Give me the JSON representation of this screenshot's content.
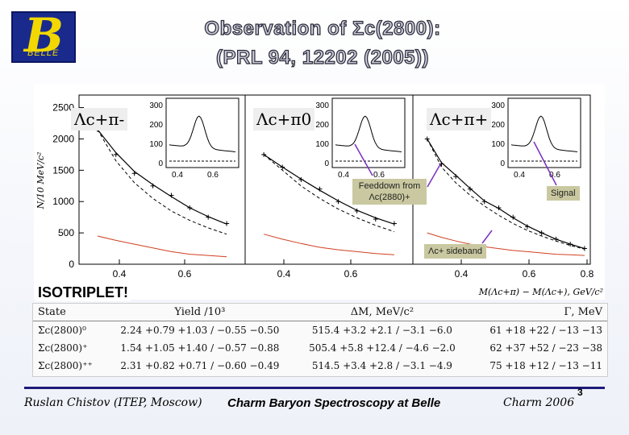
{
  "title": {
    "line1": "Observation of Σc(2800):",
    "line2": "(PRL 94, 12202 (2005))"
  },
  "logo": {
    "text": "BELLE"
  },
  "panels": [
    {
      "label": "Λc+π-"
    },
    {
      "label": "Λc+π0"
    },
    {
      "label": "Λc+π+"
    }
  ],
  "annotations": {
    "feeddown": "Feeddown from Λc(2880)+",
    "signal": "Signal",
    "sideband": "Λc+ sideband"
  },
  "isotriplet": "ISOTRIPLET!",
  "table": {
    "headers": [
      "State",
      "Yield /10³",
      "ΔM, MeV/c²",
      "Γ, MeV"
    ],
    "rows": [
      [
        "Σc(2800)⁰",
        "2.24 +0.79 +1.03 / −0.55 −0.50",
        "515.4 +3.2 +2.1 / −3.1 −6.0",
        "61 +18 +22 / −13 −13"
      ],
      [
        "Σc(2800)⁺",
        "1.54 +1.05 +1.40 / −0.57 −0.88",
        "505.4 +5.8 +12.4 / −4.6 −2.0",
        "62 +37 +52 / −23 −38"
      ],
      [
        "Σc(2800)⁺⁺",
        "2.31 +0.82 +0.71 / −0.60 −0.49",
        "514.5 +3.4 +2.8 / −3.1 −4.9",
        "75 +18 +12 / −13 −11"
      ]
    ]
  },
  "footer": {
    "author": "Ruslan Chistov (ITEP, Moscow)",
    "talk": "Charm Baryon Spectroscopy at Belle",
    "conf": "Charm 2006",
    "page": "3"
  },
  "chart_data": {
    "type": "line",
    "xlabel": "M(Λc+π) − M(Λc+), GeV/c²",
    "ylabel": "N/10 MeV/c²",
    "xlim": [
      0.2,
      0.8
    ],
    "ylim": [
      0,
      2700
    ],
    "x_ticks": [
      "0.4",
      "0.6",
      "0.4",
      "0.6",
      "0.4",
      "0.6",
      "0.8"
    ],
    "y_ticks": [
      "0",
      "500",
      "1000",
      "1500",
      "2000",
      "2500"
    ],
    "inset_y_ticks": [
      "0",
      "100",
      "200",
      "300"
    ],
    "inset_x_ticks": [
      "0.4",
      "0.6"
    ],
    "panels": [
      {
        "name": "Λc+π-",
        "x": [
          0.25,
          0.3,
          0.35,
          0.4,
          0.45,
          0.5,
          0.55,
          0.6
        ],
        "data": [
          2150,
          1750,
          1450,
          1250,
          1100,
          900,
          750,
          650
        ],
        "fit": [
          2150,
          1780,
          1480,
          1270,
          1080,
          900,
          760,
          640
        ],
        "background": [
          2150,
          1650,
          1300,
          1050,
          850,
          700,
          580,
          480
        ],
        "sideband": [
          450,
          380,
          320,
          260,
          200,
          160,
          140,
          120
        ]
      },
      {
        "name": "Λc+π0",
        "x": [
          0.25,
          0.3,
          0.35,
          0.4,
          0.45,
          0.5,
          0.55,
          0.6
        ],
        "data": [
          1750,
          1550,
          1350,
          1200,
          1000,
          850,
          720,
          650
        ],
        "fit": [
          1750,
          1550,
          1360,
          1180,
          1010,
          860,
          740,
          640
        ],
        "background": [
          1750,
          1500,
          1250,
          1050,
          880,
          740,
          620,
          520
        ],
        "sideband": [
          480,
          400,
          330,
          270,
          230,
          200,
          170,
          150
        ]
      },
      {
        "name": "Λc+π+",
        "x": [
          0.25,
          0.3,
          0.35,
          0.4,
          0.45,
          0.5,
          0.55,
          0.6,
          0.65,
          0.7,
          0.75,
          0.8
        ],
        "data": [
          2000,
          1600,
          1400,
          1200,
          1000,
          900,
          750,
          600,
          500,
          400,
          320,
          250
        ],
        "fit": [
          2000,
          1620,
          1420,
          1210,
          1010,
          890,
          740,
          610,
          500,
          400,
          320,
          250
        ],
        "background": [
          2000,
          1550,
          1300,
          1100,
          930,
          780,
          650,
          540,
          450,
          370,
          300,
          240
        ],
        "sideband": [
          500,
          430,
          370,
          320,
          280,
          250,
          220,
          200,
          180,
          160,
          150,
          140
        ]
      }
    ]
  }
}
